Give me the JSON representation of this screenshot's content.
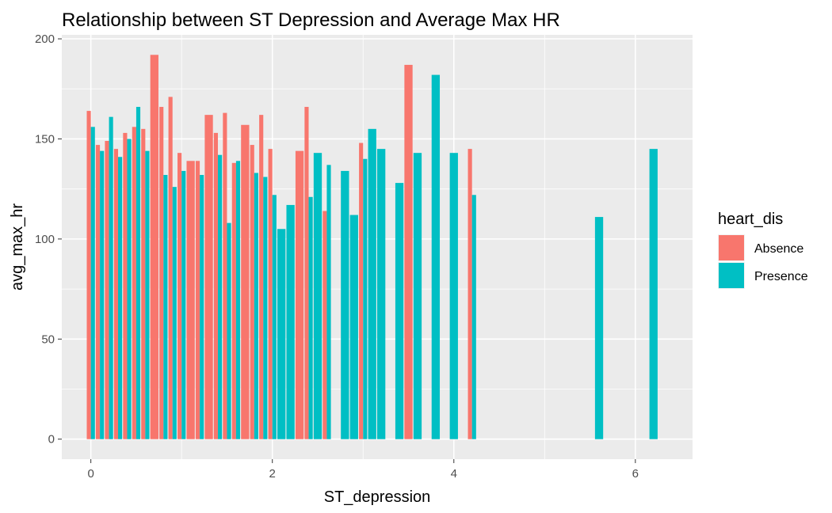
{
  "chart_data": {
    "type": "bar",
    "title": "Relationship between ST Depression and Average Max HR",
    "xlabel": "ST_depression",
    "ylabel": "avg_max_hr",
    "xlim": [
      -0.32,
      6.63
    ],
    "ylim": [
      -10,
      202
    ],
    "xticks": [
      0,
      2,
      4,
      6
    ],
    "yticks": [
      0,
      50,
      100,
      150,
      200
    ],
    "grid": true,
    "legend": {
      "title": "heart_dis",
      "position": "right"
    },
    "bar_width": 0.09,
    "series": [
      {
        "name": "Absence",
        "color": "#F8766D",
        "points": [
          {
            "x": 0.0,
            "y": 164
          },
          {
            "x": 0.1,
            "y": 147
          },
          {
            "x": 0.2,
            "y": 149
          },
          {
            "x": 0.3,
            "y": 145
          },
          {
            "x": 0.4,
            "y": 153
          },
          {
            "x": 0.5,
            "y": 156
          },
          {
            "x": 0.6,
            "y": 155
          },
          {
            "x": 0.7,
            "y": 192
          },
          {
            "x": 0.8,
            "y": 166
          },
          {
            "x": 0.9,
            "y": 171
          },
          {
            "x": 1.0,
            "y": 143
          },
          {
            "x": 1.1,
            "y": 139
          },
          {
            "x": 1.2,
            "y": 139
          },
          {
            "x": 1.3,
            "y": 162
          },
          {
            "x": 1.4,
            "y": 153
          },
          {
            "x": 1.5,
            "y": 163
          },
          {
            "x": 1.6,
            "y": 138
          },
          {
            "x": 1.7,
            "y": 157
          },
          {
            "x": 1.8,
            "y": 147
          },
          {
            "x": 1.9,
            "y": 162
          },
          {
            "x": 2.0,
            "y": 145
          },
          {
            "x": 2.3,
            "y": 144
          },
          {
            "x": 2.4,
            "y": 166
          },
          {
            "x": 2.6,
            "y": 114
          },
          {
            "x": 3.0,
            "y": 148
          },
          {
            "x": 3.5,
            "y": 187
          },
          {
            "x": 4.2,
            "y": 145
          }
        ]
      },
      {
        "name": "Presence",
        "color": "#00BFC4",
        "points": [
          {
            "x": 0.0,
            "y": 156
          },
          {
            "x": 0.1,
            "y": 144
          },
          {
            "x": 0.2,
            "y": 161
          },
          {
            "x": 0.3,
            "y": 141
          },
          {
            "x": 0.4,
            "y": 150
          },
          {
            "x": 0.5,
            "y": 166
          },
          {
            "x": 0.6,
            "y": 144
          },
          {
            "x": 0.8,
            "y": 132
          },
          {
            "x": 0.9,
            "y": 126
          },
          {
            "x": 1.0,
            "y": 134
          },
          {
            "x": 1.2,
            "y": 132
          },
          {
            "x": 1.4,
            "y": 142
          },
          {
            "x": 1.5,
            "y": 108
          },
          {
            "x": 1.6,
            "y": 139
          },
          {
            "x": 1.8,
            "y": 133
          },
          {
            "x": 1.9,
            "y": 131
          },
          {
            "x": 2.0,
            "y": 122
          },
          {
            "x": 2.1,
            "y": 105
          },
          {
            "x": 2.2,
            "y": 117
          },
          {
            "x": 2.4,
            "y": 121
          },
          {
            "x": 2.5,
            "y": 143
          },
          {
            "x": 2.6,
            "y": 137
          },
          {
            "x": 2.8,
            "y": 134
          },
          {
            "x": 2.9,
            "y": 112
          },
          {
            "x": 3.0,
            "y": 140
          },
          {
            "x": 3.1,
            "y": 155
          },
          {
            "x": 3.2,
            "y": 145
          },
          {
            "x": 3.4,
            "y": 128
          },
          {
            "x": 3.6,
            "y": 143
          },
          {
            "x": 3.8,
            "y": 182
          },
          {
            "x": 4.0,
            "y": 143
          },
          {
            "x": 4.2,
            "y": 122
          },
          {
            "x": 5.6,
            "y": 111
          },
          {
            "x": 6.2,
            "y": 145
          }
        ]
      }
    ]
  }
}
